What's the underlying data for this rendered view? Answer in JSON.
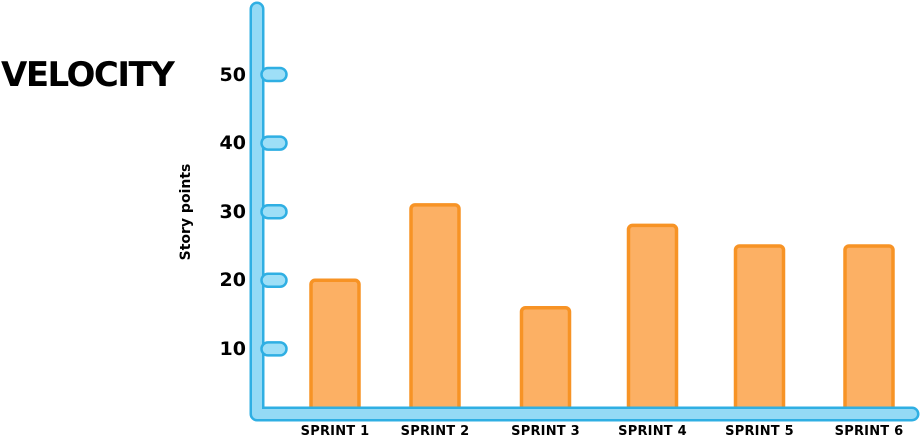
{
  "chart_data": {
    "type": "bar",
    "title": "VELOCITY",
    "xlabel": "",
    "ylabel": "Story points",
    "categories": [
      "SPRINT 1",
      "SPRINT 2",
      "SPRINT 3",
      "SPRINT 4",
      "SPRINT 5",
      "SPRINT 6"
    ],
    "values": [
      20,
      31,
      16,
      28,
      25,
      25
    ],
    "yticks": [
      10,
      20,
      30,
      40,
      50
    ],
    "ylim": [
      0,
      58
    ],
    "grid": false,
    "legend": "none",
    "colors": {
      "bar_fill": "#fcb064",
      "bar_border": "#f79325",
      "axis_fill": "#94daf5",
      "axis_border": "#2fafe3",
      "tick_fill": "#9edff7",
      "text": "#000000"
    }
  }
}
